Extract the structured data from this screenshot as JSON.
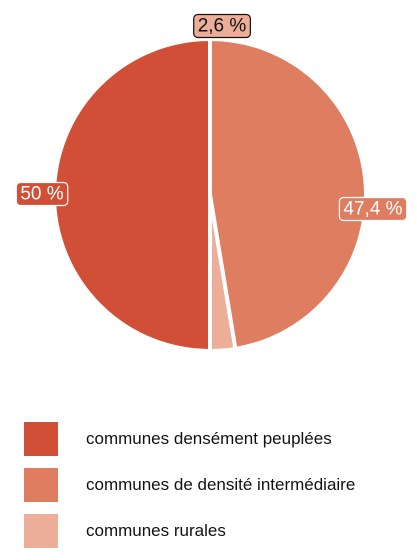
{
  "chart_data": {
    "type": "pie",
    "slices": [
      {
        "label": "communes densément peuplées",
        "value": 50,
        "display": "50 %",
        "color": "#d14f36"
      },
      {
        "label": "communes de densité intermédiaire",
        "value": 47.4,
        "display": "47,4 %",
        "color": "#df7d61"
      },
      {
        "label": "communes rurales",
        "value": 2.6,
        "display": "2,6 %",
        "color": "#edae99"
      }
    ],
    "legend_position": "bottom-left"
  }
}
